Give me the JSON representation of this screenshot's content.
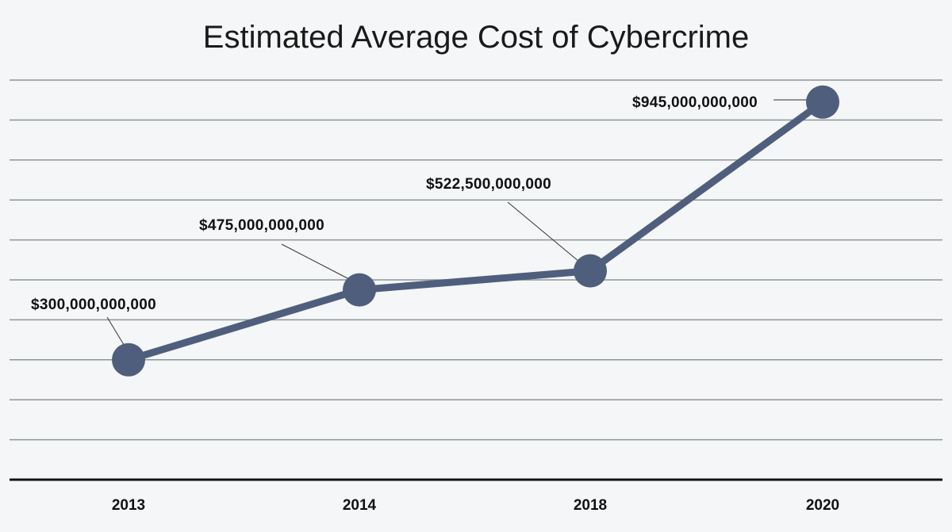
{
  "chart_data": {
    "type": "line",
    "title": "Estimated Average Cost of Cybercrime",
    "xlabel": "",
    "ylabel": "",
    "categories": [
      "2013",
      "2014",
      "2018",
      "2020"
    ],
    "values": [
      300000000000,
      475000000000,
      522500000000,
      945000000000
    ],
    "data_labels": [
      "$300,000,000,000",
      "$475,000,000,000",
      "$522,500,000,000",
      "$945,000,000,000"
    ],
    "ylim": [
      0,
      1000000000000
    ],
    "y_gridline_step": 100000000000,
    "y_tick_labels_shown": false,
    "grid": true,
    "legend": "none",
    "colors": {
      "line": "#4f5e7c",
      "grid": "#8c969b",
      "background": "#f4f6f7",
      "axis": "#111111"
    }
  }
}
